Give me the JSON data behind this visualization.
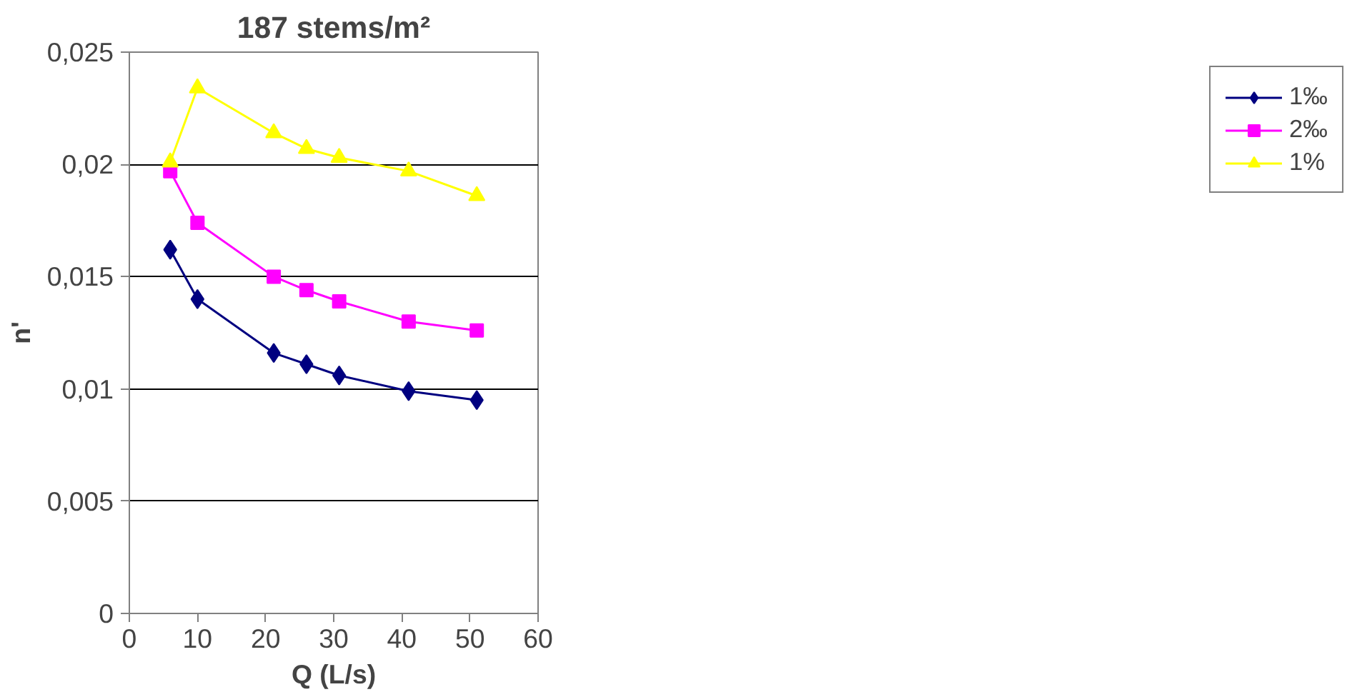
{
  "chart_data": {
    "type": "line",
    "title": "187 stems/m²",
    "xlabel": "Q (L/s)",
    "ylabel": "n'",
    "x": [
      6,
      10,
      21.2,
      26,
      30.8,
      41,
      51
    ],
    "series": [
      {
        "name": "1‰",
        "color": "#000080",
        "marker": "diamond",
        "values": [
          0.0162,
          0.014,
          0.0116,
          0.0111,
          0.0106,
          0.0099,
          0.0095
        ]
      },
      {
        "name": "2‰",
        "color": "#ff00ff",
        "marker": "square",
        "values": [
          0.0197,
          0.0174,
          0.015,
          0.0144,
          0.0139,
          0.013,
          0.0126
        ]
      },
      {
        "name": "1%",
        "color": "#ffff00",
        "marker": "triangle",
        "values": [
          0.0201,
          0.0234,
          0.0214,
          0.0207,
          0.0203,
          0.0197,
          0.0186
        ]
      }
    ],
    "xlim": [
      0,
      60
    ],
    "xticks": [
      0,
      10,
      20,
      30,
      40,
      50,
      60
    ],
    "ylim": [
      0,
      0.025
    ],
    "yticks": [
      {
        "value": 0,
        "label": "0"
      },
      {
        "value": 0.005,
        "label": "0,005"
      },
      {
        "value": 0.01,
        "label": "0,01"
      },
      {
        "value": 0.015,
        "label": "0,015"
      },
      {
        "value": 0.02,
        "label": "0,02"
      },
      {
        "value": 0.025,
        "label": "0,025"
      }
    ],
    "grid": "y",
    "legend": "right",
    "line_style": "solid"
  }
}
